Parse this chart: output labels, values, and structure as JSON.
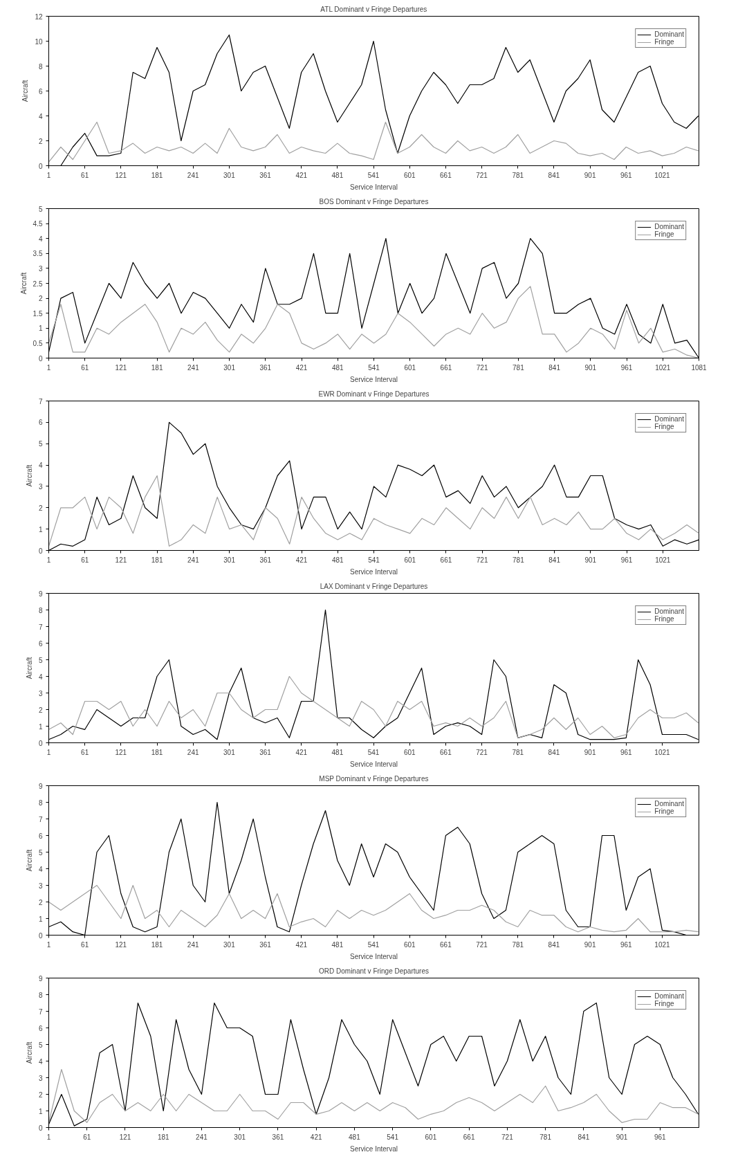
{
  "chart_data": [
    {
      "type": "line",
      "title": "ATL Dominant v Fringe Departures",
      "xlabel": "Service Interval",
      "ylabel": "Aircraft",
      "xlim": [
        1,
        1082
      ],
      "ylim": [
        0,
        12
      ],
      "xticks": [
        1,
        61,
        121,
        181,
        241,
        301,
        361,
        421,
        481,
        541,
        601,
        661,
        721,
        781,
        841,
        901,
        961,
        1021
      ],
      "yticks": [
        0,
        2,
        4,
        6,
        8,
        10,
        12
      ],
      "grid": false,
      "legend": "top right",
      "x": [
        1,
        21,
        41,
        61,
        81,
        101,
        121,
        141,
        161,
        181,
        201,
        221,
        241,
        261,
        281,
        301,
        321,
        341,
        361,
        381,
        401,
        421,
        441,
        461,
        481,
        501,
        521,
        541,
        561,
        581,
        601,
        621,
        641,
        661,
        681,
        701,
        721,
        741,
        761,
        781,
        801,
        821,
        841,
        861,
        881,
        901,
        921,
        941,
        961,
        981,
        1001,
        1021,
        1041,
        1061,
        1081
      ],
      "series": [
        {
          "name": "Dominant",
          "color": "#000000",
          "values": [
            0,
            0,
            1.5,
            2.6,
            0.8,
            0.8,
            1.0,
            7.5,
            7.0,
            9.5,
            7.5,
            2.0,
            6.0,
            6.5,
            9.0,
            10.5,
            6.0,
            7.5,
            8.0,
            5.5,
            3.0,
            7.5,
            9.0,
            6.0,
            3.5,
            5.0,
            6.5,
            10.0,
            4.5,
            1.0,
            4.0,
            6.0,
            7.5,
            6.5,
            5.0,
            6.5,
            6.5,
            7.0,
            9.5,
            7.5,
            8.5,
            6.0,
            3.5,
            6.0,
            7.0,
            8.5,
            4.5,
            3.5,
            5.5,
            7.5,
            8.0,
            5.0,
            3.5,
            3.0,
            4.0
          ]
        },
        {
          "name": "Fringe",
          "color": "#a0a0a0",
          "values": [
            0.3,
            1.5,
            0.5,
            2.0,
            3.5,
            1.0,
            1.2,
            1.8,
            1.0,
            1.5,
            1.2,
            1.5,
            1.0,
            1.8,
            1.0,
            3.0,
            1.5,
            1.2,
            1.5,
            2.5,
            1.0,
            1.5,
            1.2,
            1.0,
            1.8,
            1.0,
            0.8,
            0.5,
            3.5,
            1.0,
            1.5,
            2.5,
            1.5,
            1.0,
            2.0,
            1.2,
            1.5,
            1.0,
            1.5,
            2.5,
            1.0,
            1.5,
            2.0,
            1.8,
            1.0,
            0.8,
            1.0,
            0.5,
            1.5,
            1.0,
            1.2,
            0.8,
            1.0,
            1.5,
            1.2
          ]
        }
      ]
    },
    {
      "type": "line",
      "title": "BOS Dominant v Fringe Departures",
      "xlabel": "Service Interval",
      "ylabel": "Aircraft",
      "xlim": [
        1,
        1081
      ],
      "ylim": [
        0,
        5
      ],
      "xticks": [
        1,
        61,
        121,
        181,
        241,
        301,
        361,
        421,
        481,
        541,
        601,
        661,
        721,
        781,
        841,
        901,
        961,
        1021,
        1081
      ],
      "yticks": [
        0,
        0.5,
        1,
        1.5,
        2,
        2.5,
        3,
        3.5,
        4,
        4.5,
        5
      ],
      "grid": false,
      "legend": "top right",
      "x": [
        1,
        21,
        41,
        61,
        81,
        101,
        121,
        141,
        161,
        181,
        201,
        221,
        241,
        261,
        281,
        301,
        321,
        341,
        361,
        381,
        401,
        421,
        441,
        461,
        481,
        501,
        521,
        541,
        561,
        581,
        601,
        621,
        641,
        661,
        681,
        701,
        721,
        741,
        761,
        781,
        801,
        821,
        841,
        861,
        881,
        901,
        921,
        941,
        961,
        981,
        1001,
        1021,
        1041,
        1061,
        1081
      ],
      "series": [
        {
          "name": "Dominant",
          "color": "#000000",
          "values": [
            0.2,
            2.0,
            2.2,
            0.5,
            1.5,
            2.5,
            2.0,
            3.2,
            2.5,
            2.0,
            2.5,
            1.5,
            2.2,
            2.0,
            1.5,
            1.0,
            1.8,
            1.2,
            3.0,
            1.8,
            1.8,
            2.0,
            3.5,
            1.5,
            1.5,
            3.5,
            1.0,
            2.5,
            4.0,
            1.5,
            2.5,
            1.5,
            2.0,
            3.5,
            2.5,
            1.5,
            3.0,
            3.2,
            2.0,
            2.5,
            4.0,
            3.5,
            1.5,
            1.5,
            1.8,
            2.0,
            1.0,
            0.8,
            1.8,
            0.8,
            0.5,
            1.8,
            0.5,
            0.6,
            0
          ]
        },
        {
          "name": "Fringe",
          "color": "#a0a0a0",
          "values": [
            0.5,
            1.8,
            0.2,
            0.2,
            1.0,
            0.8,
            1.2,
            1.5,
            1.8,
            1.2,
            0.2,
            1.0,
            0.8,
            1.2,
            0.6,
            0.2,
            0.8,
            0.5,
            1.0,
            1.8,
            1.5,
            0.5,
            0.3,
            0.5,
            0.8,
            0.3,
            0.8,
            0.5,
            0.8,
            1.5,
            1.2,
            0.8,
            0.4,
            0.8,
            1.0,
            0.8,
            1.5,
            1.0,
            1.2,
            2.0,
            2.4,
            0.8,
            0.8,
            0.2,
            0.5,
            1.0,
            0.8,
            0.3,
            1.6,
            0.5,
            1.0,
            0.2,
            0.3,
            0.1,
            0
          ]
        }
      ]
    },
    {
      "type": "line",
      "title": "EWR Dominant v Fringe Departures",
      "xlabel": "Service Interval",
      "ylabel": "Aircraft",
      "xlim": [
        1,
        1081
      ],
      "ylim": [
        0,
        7
      ],
      "xticks": [
        1,
        61,
        121,
        181,
        241,
        301,
        361,
        421,
        481,
        541,
        601,
        661,
        721,
        781,
        841,
        901,
        961,
        1021
      ],
      "yticks": [
        0,
        1,
        2,
        3,
        4,
        5,
        6,
        7
      ],
      "grid": false,
      "legend": "top right",
      "x": [
        1,
        21,
        41,
        61,
        81,
        101,
        121,
        141,
        161,
        181,
        201,
        221,
        241,
        261,
        281,
        301,
        321,
        341,
        361,
        381,
        401,
        421,
        441,
        461,
        481,
        501,
        521,
        541,
        561,
        581,
        601,
        621,
        641,
        661,
        681,
        701,
        721,
        741,
        761,
        781,
        801,
        821,
        841,
        861,
        881,
        901,
        921,
        941,
        961,
        981,
        1001,
        1021,
        1041,
        1061,
        1081
      ],
      "series": [
        {
          "name": "Dominant",
          "color": "#000000",
          "values": [
            0,
            0.3,
            0.2,
            0.5,
            2.5,
            1.2,
            1.5,
            3.5,
            2.0,
            1.5,
            6.0,
            5.5,
            4.5,
            5.0,
            3.0,
            2.0,
            1.2,
            1.0,
            2.0,
            3.5,
            4.2,
            1.0,
            2.5,
            2.5,
            1.0,
            1.8,
            1.0,
            3.0,
            2.5,
            4.0,
            3.8,
            3.5,
            4.0,
            2.5,
            2.8,
            2.2,
            3.5,
            2.5,
            3.0,
            2.0,
            2.5,
            3.0,
            4.0,
            2.5,
            2.5,
            3.5,
            3.5,
            1.5,
            1.2,
            1.0,
            1.2,
            0.2,
            0.5,
            0.3,
            0.5
          ]
        },
        {
          "name": "Fringe",
          "color": "#a0a0a0",
          "values": [
            0.2,
            2.0,
            2.0,
            2.5,
            1.0,
            2.5,
            2.0,
            0.8,
            2.5,
            3.5,
            0.2,
            0.5,
            1.2,
            0.8,
            2.5,
            1.0,
            1.2,
            0.5,
            2.0,
            1.5,
            0.3,
            2.5,
            1.5,
            0.8,
            0.5,
            0.8,
            0.5,
            1.5,
            1.2,
            1.0,
            0.8,
            1.5,
            1.2,
            2.0,
            1.5,
            1.0,
            2.0,
            1.5,
            2.5,
            1.5,
            2.5,
            1.2,
            1.5,
            1.2,
            1.8,
            1.0,
            1.0,
            1.5,
            0.8,
            0.5,
            1.0,
            0.5,
            0.8,
            1.2,
            0.8
          ]
        }
      ]
    },
    {
      "type": "line",
      "title": "LAX Dominant v Fringe Departures",
      "xlabel": "Service Interval",
      "ylabel": "Aircraft",
      "xlim": [
        1,
        1082
      ],
      "ylim": [
        0,
        9
      ],
      "xticks": [
        1,
        61,
        121,
        181,
        241,
        301,
        361,
        421,
        481,
        541,
        601,
        661,
        721,
        781,
        841,
        901,
        961,
        1021
      ],
      "yticks": [
        0,
        1,
        2,
        3,
        4,
        5,
        6,
        7,
        8,
        9
      ],
      "grid": false,
      "legend": "top right",
      "x": [
        1,
        21,
        41,
        61,
        81,
        101,
        121,
        141,
        161,
        181,
        201,
        221,
        241,
        261,
        281,
        301,
        321,
        341,
        361,
        381,
        401,
        421,
        441,
        461,
        481,
        501,
        521,
        541,
        561,
        581,
        601,
        621,
        641,
        661,
        681,
        701,
        721,
        741,
        761,
        781,
        801,
        821,
        841,
        861,
        881,
        901,
        921,
        941,
        961,
        981,
        1001,
        1021,
        1041,
        1061,
        1081
      ],
      "series": [
        {
          "name": "Dominant",
          "color": "#000000",
          "values": [
            0.2,
            0.5,
            1.0,
            0.8,
            2.0,
            1.5,
            1.0,
            1.5,
            1.5,
            4.0,
            5.0,
            1.0,
            0.5,
            0.8,
            0.2,
            3.0,
            4.5,
            1.5,
            1.2,
            1.5,
            0.3,
            2.5,
            2.5,
            8.0,
            1.5,
            1.5,
            0.8,
            0.3,
            1.0,
            1.5,
            3.0,
            4.5,
            0.5,
            1.0,
            1.2,
            1.0,
            0.5,
            5.0,
            4.0,
            0.3,
            0.5,
            0.3,
            3.5,
            3.0,
            0.5,
            0.2,
            0.2,
            0.2,
            0.3,
            5.0,
            3.5,
            0.5,
            0.5,
            0.5,
            0.2
          ]
        },
        {
          "name": "Fringe",
          "color": "#a0a0a0",
          "values": [
            0.8,
            1.2,
            0.5,
            2.5,
            2.5,
            2.0,
            2.5,
            1.0,
            2.0,
            1.0,
            2.5,
            1.5,
            2.0,
            1.0,
            3.0,
            3.0,
            2.0,
            1.5,
            2.0,
            2.0,
            4.0,
            3.0,
            2.5,
            2.0,
            1.5,
            1.0,
            2.5,
            2.0,
            1.0,
            2.5,
            2.0,
            2.5,
            1.0,
            1.2,
            1.0,
            1.5,
            1.0,
            1.5,
            2.5,
            0.3,
            0.5,
            0.8,
            1.5,
            0.8,
            1.5,
            0.5,
            1.0,
            0.3,
            0.5,
            1.5,
            2.0,
            1.5,
            1.5,
            1.8,
            1.2
          ]
        }
      ]
    },
    {
      "type": "line",
      "title": "MSP Dominant v Fringe Departures",
      "xlabel": "Service Interval",
      "ylabel": "Aircraft",
      "xlim": [
        1,
        1082
      ],
      "ylim": [
        0,
        9
      ],
      "xticks": [
        1,
        61,
        121,
        181,
        241,
        301,
        361,
        421,
        481,
        541,
        601,
        661,
        721,
        781,
        841,
        901,
        961,
        1021
      ],
      "yticks": [
        0,
        1,
        2,
        3,
        4,
        5,
        6,
        7,
        8,
        9
      ],
      "grid": false,
      "legend": "top right",
      "x": [
        1,
        21,
        41,
        61,
        81,
        101,
        121,
        141,
        161,
        181,
        201,
        221,
        241,
        261,
        281,
        301,
        321,
        341,
        361,
        381,
        401,
        421,
        441,
        461,
        481,
        501,
        521,
        541,
        561,
        581,
        601,
        621,
        641,
        661,
        681,
        701,
        721,
        741,
        761,
        781,
        801,
        821,
        841,
        861,
        881,
        901,
        921,
        941,
        961,
        981,
        1001,
        1021,
        1041,
        1061,
        1081
      ],
      "series": [
        {
          "name": "Dominant",
          "color": "#000000",
          "values": [
            0.5,
            0.8,
            0.2,
            0,
            5.0,
            6.0,
            2.5,
            0.5,
            0.2,
            0.5,
            5.0,
            7.0,
            3.0,
            2.0,
            8.0,
            2.5,
            4.5,
            7.0,
            3.5,
            0.5,
            0.2,
            3.0,
            5.5,
            7.5,
            4.5,
            3.0,
            5.5,
            3.5,
            5.5,
            5.0,
            3.5,
            2.5,
            1.5,
            6.0,
            6.5,
            5.5,
            2.5,
            1.0,
            1.5,
            5.0,
            5.5,
            6.0,
            5.5,
            1.5,
            0.5,
            0.5,
            6.0,
            6.0,
            1.5,
            3.5,
            4.0,
            0.3,
            0.2,
            0,
            0
          ]
        },
        {
          "name": "Fringe",
          "color": "#a0a0a0",
          "values": [
            2.0,
            1.5,
            2.0,
            2.5,
            3.0,
            2.0,
            1.0,
            3.0,
            1.0,
            1.5,
            0.5,
            1.5,
            1.0,
            0.5,
            1.2,
            2.5,
            1.0,
            1.5,
            1.0,
            2.5,
            0.5,
            0.8,
            1.0,
            0.5,
            1.5,
            1.0,
            1.5,
            1.2,
            1.5,
            2.0,
            2.5,
            1.5,
            1.0,
            1.2,
            1.5,
            1.5,
            1.8,
            1.5,
            0.8,
            0.5,
            1.5,
            1.2,
            1.2,
            0.5,
            0.2,
            0.5,
            0.3,
            0.2,
            0.3,
            1.0,
            0.2,
            0.2,
            0.2,
            0.3,
            0.2
          ]
        }
      ]
    },
    {
      "type": "line",
      "title": "ORD Dominant v Fringe Departures",
      "xlabel": "Service Interval",
      "ylabel": "Aircraft",
      "xlim": [
        1,
        1022
      ],
      "ylim": [
        0,
        9
      ],
      "xticks": [
        1,
        61,
        121,
        181,
        241,
        301,
        361,
        421,
        481,
        541,
        601,
        661,
        721,
        781,
        841,
        901,
        961
      ],
      "yticks": [
        0,
        1,
        2,
        3,
        4,
        5,
        6,
        7,
        8,
        9
      ],
      "grid": false,
      "legend": "top right",
      "x": [
        1,
        21,
        41,
        61,
        81,
        101,
        121,
        141,
        161,
        181,
        201,
        221,
        241,
        261,
        281,
        301,
        321,
        341,
        361,
        381,
        401,
        421,
        441,
        461,
        481,
        501,
        521,
        541,
        561,
        581,
        601,
        621,
        641,
        661,
        681,
        701,
        721,
        741,
        761,
        781,
        801,
        821,
        841,
        861,
        881,
        901,
        921,
        941,
        961,
        981,
        1001,
        1021
      ],
      "series": [
        {
          "name": "Dominant",
          "color": "#000000",
          "values": [
            0.2,
            2.0,
            0.1,
            0.5,
            4.5,
            5.0,
            1.0,
            7.5,
            5.5,
            1.0,
            6.5,
            3.5,
            2.0,
            7.5,
            6.0,
            6.0,
            5.5,
            2.0,
            2.0,
            6.5,
            3.5,
            0.8,
            3.0,
            6.5,
            5.0,
            4.0,
            2.0,
            6.5,
            4.5,
            2.5,
            5.0,
            5.5,
            4.0,
            5.5,
            5.5,
            2.5,
            4.0,
            6.5,
            4.0,
            5.5,
            3.0,
            2.0,
            7.0,
            7.5,
            3.0,
            2.0,
            5.0,
            5.5,
            5.0,
            3.0,
            2.0,
            0.8
          ]
        },
        {
          "name": "Fringe",
          "color": "#a0a0a0",
          "values": [
            0.3,
            3.5,
            1.0,
            0.3,
            1.5,
            2.0,
            1.0,
            1.5,
            1.0,
            2.0,
            1.0,
            2.0,
            1.5,
            1.0,
            1.0,
            2.0,
            1.0,
            1.0,
            0.5,
            1.5,
            1.5,
            0.8,
            1.0,
            1.5,
            1.0,
            1.5,
            1.0,
            1.5,
            1.2,
            0.5,
            0.8,
            1.0,
            1.5,
            1.8,
            1.5,
            1.0,
            1.5,
            2.0,
            1.5,
            2.5,
            1.0,
            1.2,
            1.5,
            2.0,
            1.0,
            0.3,
            0.5,
            0.5,
            1.5,
            1.2,
            1.2,
            0.8
          ]
        }
      ]
    }
  ]
}
